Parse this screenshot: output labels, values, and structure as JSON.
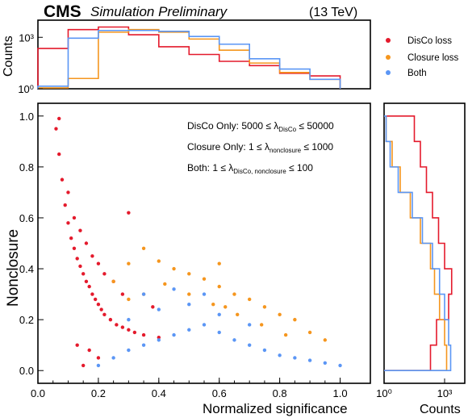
{
  "header": {
    "cms": "CMS",
    "prelim": "Simulation Preliminary",
    "energy": "(13 TeV)"
  },
  "legend": [
    {
      "label": "DisCo loss",
      "color": "#e41a2c"
    },
    {
      "label": "Closure loss",
      "color": "#f5961e"
    },
    {
      "label": "Both",
      "color": "#5b96f5"
    }
  ],
  "annotations": {
    "disco": "DisCo Only: 5000 ≤ λDisCo ≤ 50000",
    "closure": "Closure Only: 1 ≤ λnonclosure ≤ 1000",
    "both": "Both: 1 ≤ λDisCo, nonclosure ≤ 100"
  },
  "chart_data": [
    {
      "type": "scatter",
      "panel": "main",
      "xlabel": "Normalized significance",
      "ylabel": "Nonclosure",
      "xlim": [
        0,
        1.1
      ],
      "ylim": [
        -0.05,
        1.05
      ],
      "xticks": [
        "0.0",
        "0.2",
        "0.4",
        "0.6",
        "0.8",
        "1.0"
      ],
      "yticks": [
        "0.0",
        "0.2",
        "0.4",
        "0.6",
        "0.8",
        "1.0"
      ],
      "series": [
        {
          "name": "DisCo loss",
          "color": "#e41a2c",
          "points": [
            [
              0.06,
              0.95
            ],
            [
              0.07,
              0.85
            ],
            [
              0.08,
              0.75
            ],
            [
              0.09,
              0.65
            ],
            [
              0.1,
              0.58
            ],
            [
              0.11,
              0.52
            ],
            [
              0.12,
              0.48
            ],
            [
              0.13,
              0.44
            ],
            [
              0.14,
              0.41
            ],
            [
              0.15,
              0.38
            ],
            [
              0.16,
              0.35
            ],
            [
              0.17,
              0.33
            ],
            [
              0.18,
              0.3
            ],
            [
              0.19,
              0.28
            ],
            [
              0.2,
              0.26
            ],
            [
              0.21,
              0.24
            ],
            [
              0.22,
              0.22
            ],
            [
              0.24,
              0.2
            ],
            [
              0.26,
              0.18
            ],
            [
              0.28,
              0.17
            ],
            [
              0.3,
              0.16
            ],
            [
              0.32,
              0.15
            ],
            [
              0.35,
              0.14
            ],
            [
              0.4,
              0.13
            ],
            [
              0.1,
              0.7
            ],
            [
              0.12,
              0.6
            ],
            [
              0.14,
              0.55
            ],
            [
              0.16,
              0.5
            ],
            [
              0.18,
              0.45
            ],
            [
              0.2,
              0.42
            ],
            [
              0.22,
              0.38
            ],
            [
              0.25,
              0.35
            ],
            [
              0.28,
              0.3
            ],
            [
              0.15,
              0.02
            ],
            [
              0.2,
              0.05
            ],
            [
              0.13,
              0.1
            ],
            [
              0.17,
              0.08
            ],
            [
              0.07,
              0.99
            ],
            [
              0.3,
              0.62
            ],
            [
              0.38,
              0.25
            ]
          ]
        },
        {
          "name": "Closure loss",
          "color": "#f5961e",
          "points": [
            [
              0.25,
              0.35
            ],
            [
              0.3,
              0.42
            ],
            [
              0.35,
              0.48
            ],
            [
              0.4,
              0.43
            ],
            [
              0.45,
              0.4
            ],
            [
              0.5,
              0.38
            ],
            [
              0.55,
              0.36
            ],
            [
              0.6,
              0.33
            ],
            [
              0.65,
              0.3
            ],
            [
              0.7,
              0.28
            ],
            [
              0.75,
              0.25
            ],
            [
              0.8,
              0.22
            ],
            [
              0.85,
              0.2
            ],
            [
              0.9,
              0.15
            ],
            [
              0.95,
              0.12
            ],
            [
              0.3,
              0.28
            ],
            [
              0.35,
              0.3
            ],
            [
              0.42,
              0.34
            ],
            [
              0.5,
              0.3
            ],
            [
              0.58,
              0.26
            ],
            [
              0.66,
              0.22
            ],
            [
              0.74,
              0.18
            ],
            [
              0.82,
              0.14
            ],
            [
              0.6,
              0.42
            ],
            [
              0.62,
              0.25
            ]
          ]
        },
        {
          "name": "Both",
          "color": "#5b96f5",
          "points": [
            [
              0.2,
              0.02
            ],
            [
              0.25,
              0.05
            ],
            [
              0.3,
              0.08
            ],
            [
              0.35,
              0.1
            ],
            [
              0.4,
              0.12
            ],
            [
              0.45,
              0.14
            ],
            [
              0.5,
              0.16
            ],
            [
              0.55,
              0.18
            ],
            [
              0.6,
              0.15
            ],
            [
              0.65,
              0.12
            ],
            [
              0.7,
              0.1
            ],
            [
              0.75,
              0.08
            ],
            [
              0.8,
              0.06
            ],
            [
              0.85,
              0.05
            ],
            [
              0.9,
              0.04
            ],
            [
              0.95,
              0.03
            ],
            [
              1.0,
              0.02
            ],
            [
              0.3,
              0.2
            ],
            [
              0.4,
              0.24
            ],
            [
              0.5,
              0.26
            ],
            [
              0.6,
              0.22
            ],
            [
              0.7,
              0.18
            ],
            [
              0.35,
              0.3
            ],
            [
              0.45,
              0.32
            ],
            [
              0.55,
              0.3
            ]
          ]
        }
      ]
    },
    {
      "type": "histogram",
      "panel": "top",
      "ylabel": "Counts",
      "xlim": [
        0,
        1.1
      ],
      "ylim_log10": [
        0,
        4
      ],
      "yticks": [
        "10⁰",
        "10³"
      ],
      "bin_edges": [
        0.0,
        0.1,
        0.2,
        0.3,
        0.4,
        0.5,
        0.6,
        0.7,
        0.8,
        0.9,
        1.0
      ],
      "series": [
        {
          "name": "DisCo loss",
          "color": "#e41a2c",
          "log10_values": [
            2.35,
            3.45,
            3.6,
            3.15,
            2.45,
            2.0,
            1.6,
            1.35,
            0.9,
            0.75
          ]
        },
        {
          "name": "Closure loss",
          "color": "#f5961e",
          "log10_values": [
            0.05,
            0.6,
            3.3,
            3.45,
            3.3,
            2.9,
            2.25,
            1.5,
            0.95,
            0.55
          ]
        },
        {
          "name": "Both",
          "color": "#5b96f5",
          "log10_values": [
            0.15,
            2.95,
            3.4,
            3.4,
            3.35,
            3.05,
            2.6,
            1.75,
            1.15,
            0.55
          ]
        }
      ]
    },
    {
      "type": "histogram",
      "panel": "right",
      "orientation": "horizontal",
      "xlabel": "Counts",
      "xlim_log10": [
        0,
        4
      ],
      "xticks": [
        "10⁰",
        "10³"
      ],
      "bin_edges": [
        0.0,
        0.1,
        0.2,
        0.3,
        0.4,
        0.5,
        0.6,
        0.7,
        0.8,
        0.9,
        1.0
      ],
      "series": [
        {
          "name": "DisCo loss",
          "color": "#e41a2c",
          "log10_values": [
            2.3,
            2.6,
            3.2,
            3.35,
            3.0,
            2.7,
            2.4,
            2.1,
            1.8,
            1.5
          ]
        },
        {
          "name": "Closure loss",
          "color": "#f5961e",
          "log10_values": [
            3.1,
            3.0,
            2.75,
            2.5,
            2.3,
            1.8,
            1.3,
            0.8,
            0.4,
            0.1
          ]
        },
        {
          "name": "Both",
          "color": "#5b96f5",
          "log10_values": [
            3.3,
            3.2,
            3.0,
            2.75,
            2.4,
            1.9,
            1.4,
            0.7,
            0.3,
            0.1
          ]
        }
      ]
    }
  ]
}
